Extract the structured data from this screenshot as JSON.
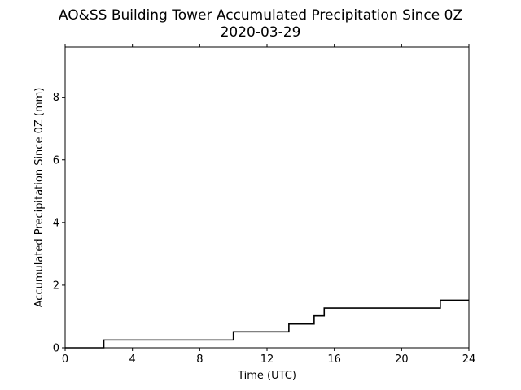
{
  "chart_data": {
    "type": "line",
    "title": "AO&SS Building Tower Accumulated Precipitation Since 0Z",
    "subtitle": "2020-03-29",
    "xlabel": "Time (UTC)",
    "ylabel": "Accumulated Precipitation Since 0Z (mm)",
    "xlim": [
      0,
      24
    ],
    "ylim": [
      0,
      9.6
    ],
    "xticks": [
      0,
      4,
      8,
      12,
      16,
      20,
      24
    ],
    "xtick_labels": [
      "0",
      "4",
      "8",
      "12",
      "16",
      "20",
      "24"
    ],
    "yticks": [
      0,
      2,
      4,
      6,
      8
    ],
    "ytick_labels": [
      "0",
      "2",
      "4",
      "6",
      "8"
    ],
    "grid": false,
    "line_color": "#000000",
    "series": [
      {
        "step": "post",
        "x": [
          0,
          2.3,
          10.0,
          13.3,
          14.8,
          15.4,
          22.3,
          24
        ],
        "y": [
          0,
          0.25,
          0.51,
          0.76,
          1.02,
          1.27,
          1.52,
          1.52
        ]
      }
    ]
  }
}
